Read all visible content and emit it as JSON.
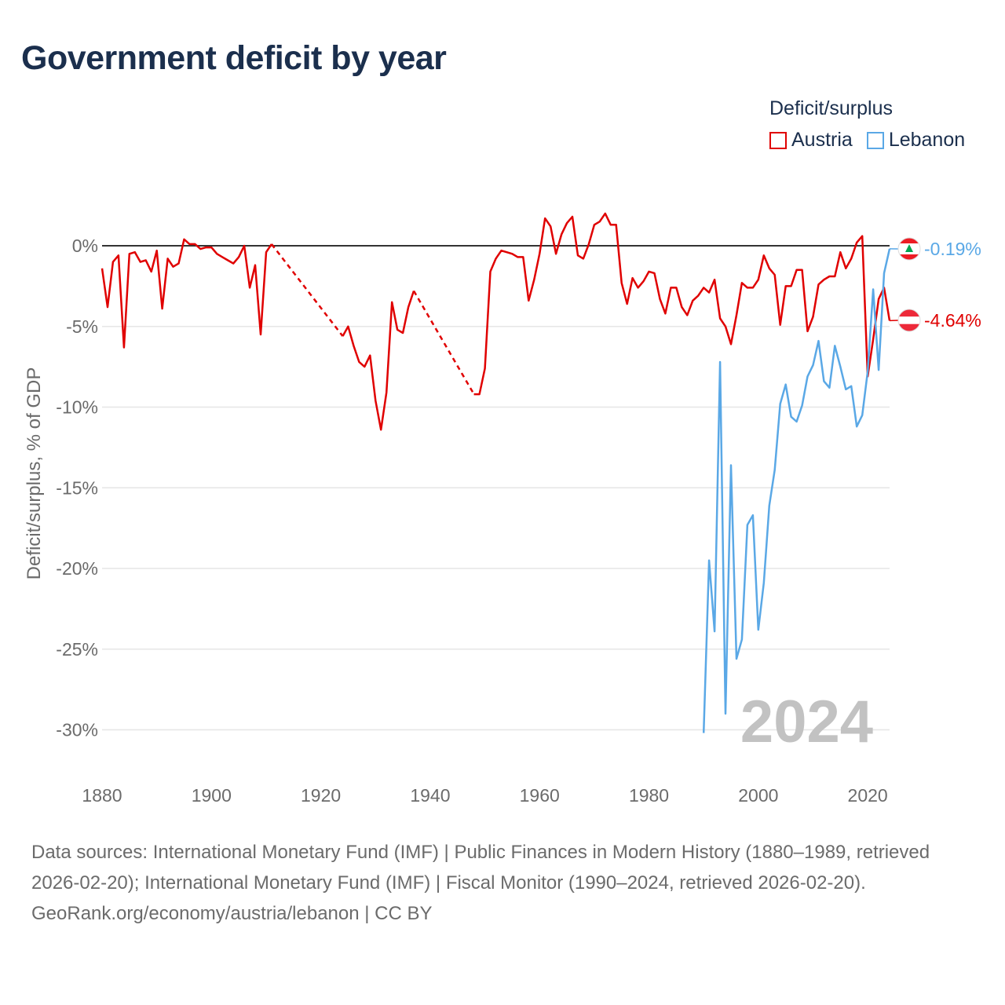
{
  "title": "Government deficit by year",
  "legend": {
    "title": "Deficit/surplus",
    "items": [
      "Austria",
      "Lebanon"
    ]
  },
  "colors": {
    "austria": "#e00000",
    "lebanon": "#5aa8e6"
  },
  "chart_data": {
    "type": "line",
    "title": "Government deficit by year",
    "xlabel": "",
    "ylabel": "Deficit/surplus, % of GDP",
    "xlim": [
      1880,
      2024
    ],
    "ylim": [
      -32,
      3
    ],
    "y_ticks": [
      0,
      -5,
      -10,
      -15,
      -20,
      -25,
      -30
    ],
    "y_tick_labels": [
      "0%",
      "-5%",
      "-10%",
      "-15%",
      "-20%",
      "-25%",
      "-30%"
    ],
    "x_ticks": [
      1880,
      1900,
      1920,
      1940,
      1960,
      1980,
      2000,
      2020
    ],
    "x_tick_labels": [
      "1880",
      "1900",
      "1920",
      "1940",
      "1960",
      "1980",
      "2000",
      "2020"
    ],
    "year_watermark": "2024",
    "series": [
      {
        "name": "Austria",
        "color": "#e00000",
        "end_label": "-4.64%",
        "gaps": [
          [
            1911,
            1924
          ],
          [
            1937,
            1948
          ]
        ],
        "x": [
          1880,
          1881,
          1882,
          1883,
          1884,
          1885,
          1886,
          1887,
          1888,
          1889,
          1890,
          1891,
          1892,
          1893,
          1894,
          1895,
          1896,
          1897,
          1898,
          1899,
          1900,
          1901,
          1902,
          1903,
          1904,
          1905,
          1906,
          1907,
          1908,
          1909,
          1910,
          1911,
          1924,
          1925,
          1926,
          1927,
          1928,
          1929,
          1930,
          1931,
          1932,
          1933,
          1934,
          1935,
          1936,
          1937,
          1948,
          1949,
          1950,
          1951,
          1952,
          1953,
          1954,
          1955,
          1956,
          1957,
          1958,
          1959,
          1960,
          1961,
          1962,
          1963,
          1964,
          1965,
          1966,
          1967,
          1968,
          1969,
          1970,
          1971,
          1972,
          1973,
          1974,
          1975,
          1976,
          1977,
          1978,
          1979,
          1980,
          1981,
          1982,
          1983,
          1984,
          1985,
          1986,
          1987,
          1988,
          1989,
          1990,
          1991,
          1992,
          1993,
          1994,
          1995,
          1996,
          1997,
          1998,
          1999,
          2000,
          2001,
          2002,
          2003,
          2004,
          2005,
          2006,
          2007,
          2008,
          2009,
          2010,
          2011,
          2012,
          2013,
          2014,
          2015,
          2016,
          2017,
          2018,
          2019,
          2020,
          2021,
          2022,
          2023,
          2024
        ],
        "values": [
          -1.4,
          -3.8,
          -1.0,
          -0.6,
          -6.3,
          -0.5,
          -0.4,
          -1.0,
          -0.9,
          -1.6,
          -0.3,
          -3.9,
          -0.8,
          -1.3,
          -1.1,
          0.4,
          0.1,
          0.1,
          -0.2,
          -0.1,
          -0.1,
          -0.5,
          -0.7,
          -0.9,
          -1.1,
          -0.7,
          0.0,
          -2.6,
          -1.2,
          -5.5,
          -0.4,
          0.1,
          -5.6,
          -5.0,
          -6.2,
          -7.2,
          -7.5,
          -6.8,
          -9.6,
          -11.4,
          -9.1,
          -3.5,
          -5.2,
          -5.4,
          -3.8,
          -2.8,
          -9.2,
          -9.2,
          -7.6,
          -1.6,
          -0.8,
          -0.3,
          -0.4,
          -0.5,
          -0.7,
          -0.7,
          -3.4,
          -2.1,
          -0.5,
          1.7,
          1.2,
          -0.5,
          0.7,
          1.4,
          1.8,
          -0.6,
          -0.8,
          0.1,
          1.3,
          1.5,
          2.0,
          1.3,
          1.3,
          -2.3,
          -3.6,
          -2.0,
          -2.6,
          -2.2,
          -1.6,
          -1.7,
          -3.3,
          -4.2,
          -2.6,
          -2.6,
          -3.8,
          -4.3,
          -3.4,
          -3.1,
          -2.6,
          -2.9,
          -2.1,
          -4.5,
          -5.0,
          -6.1,
          -4.3,
          -2.3,
          -2.6,
          -2.6,
          -2.1,
          -0.6,
          -1.4,
          -1.8,
          -4.9,
          -2.5,
          -2.5,
          -1.5,
          -1.5,
          -5.3,
          -4.4,
          -2.4,
          -2.1,
          -1.9,
          -1.9,
          -0.4,
          -1.4,
          -0.8,
          0.2,
          0.6,
          -8.1,
          -5.8,
          -3.3,
          -2.6,
          -4.64
        ]
      },
      {
        "name": "Lebanon",
        "color": "#5aa8e6",
        "end_label": "-0.19%",
        "x": [
          1990,
          1991,
          1992,
          1993,
          1994,
          1995,
          1996,
          1997,
          1998,
          1999,
          2000,
          2001,
          2002,
          2003,
          2004,
          2005,
          2006,
          2007,
          2008,
          2009,
          2010,
          2011,
          2012,
          2013,
          2014,
          2015,
          2016,
          2017,
          2018,
          2019,
          2020,
          2021,
          2022,
          2023,
          2024
        ],
        "values": [
          -30.2,
          -19.5,
          -23.9,
          -7.2,
          -29.0,
          -13.6,
          -25.6,
          -24.4,
          -17.3,
          -16.7,
          -23.8,
          -20.9,
          -16.1,
          -13.9,
          -9.8,
          -8.6,
          -10.6,
          -10.9,
          -9.9,
          -8.1,
          -7.4,
          -5.9,
          -8.4,
          -8.8,
          -6.2,
          -7.5,
          -8.9,
          -8.7,
          -11.2,
          -10.5,
          -7.8,
          -2.7,
          -7.7,
          -1.7,
          -0.19
        ]
      }
    ]
  },
  "footer": {
    "sources": "Data sources: International Monetary Fund (IMF) | Public Finances in Modern History (1880–1989, retrieved 2026-02-20); International Monetary Fund (IMF) | Fiscal Monitor (1990–2024, retrieved 2026-02-20).",
    "credit": "GeoRank.org/economy/austria/lebanon | CC BY"
  }
}
